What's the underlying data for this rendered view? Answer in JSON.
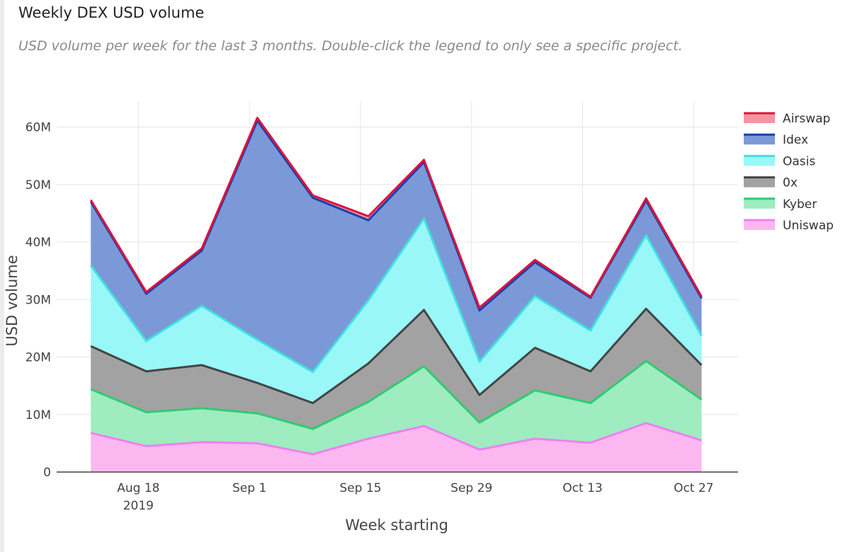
{
  "title": "Weekly DEX USD volume",
  "subtitle": "USD volume per week for the last 3 months. Double-click the legend to only see a specific project.",
  "chart_data": {
    "type": "area",
    "stacked": true,
    "x": [
      "2019-08-12",
      "2019-08-19",
      "2019-08-26",
      "2019-09-02",
      "2019-09-09",
      "2019-09-16",
      "2019-09-23",
      "2019-09-30",
      "2019-10-07",
      "2019-10-14",
      "2019-10-21",
      "2019-10-28"
    ],
    "x_ticks": [
      {
        "label": "Aug 18",
        "sublabel": "2019",
        "day": 6
      },
      {
        "label": "Sep 1",
        "sublabel": "",
        "day": 20
      },
      {
        "label": "Sep 15",
        "sublabel": "",
        "day": 34
      },
      {
        "label": "Sep 29",
        "sublabel": "",
        "day": 48
      },
      {
        "label": "Oct 13",
        "sublabel": "",
        "day": 62
      },
      {
        "label": "Oct 27",
        "sublabel": "",
        "day": 76
      }
    ],
    "x_point_days": [
      0,
      7,
      14,
      21,
      28,
      35,
      42,
      49,
      56,
      63,
      70,
      77
    ],
    "x_range_days": [
      -4.3,
      81.6
    ],
    "y_ticks": [
      {
        "value": 0,
        "label": "0"
      },
      {
        "value": 10,
        "label": "10M"
      },
      {
        "value": 20,
        "label": "20M"
      },
      {
        "value": 30,
        "label": "30M"
      },
      {
        "value": 40,
        "label": "40M"
      },
      {
        "value": 50,
        "label": "50M"
      },
      {
        "value": 60,
        "label": "60M"
      }
    ],
    "ylim": [
      0,
      64.5
    ],
    "xlabel": "Week starting",
    "ylabel": "USD volume",
    "series": [
      {
        "name": "Uniswap",
        "line": "#ee82ee",
        "fill": "#fdb7f0",
        "values": [
          6.8,
          4.5,
          5.2,
          5.0,
          3.1,
          5.8,
          8.0,
          3.9,
          5.8,
          5.1,
          8.5,
          5.5
        ]
      },
      {
        "name": "Kyber",
        "line": "#2ecc71",
        "fill": "#9eecc0",
        "values": [
          7.6,
          5.9,
          5.9,
          5.2,
          4.4,
          6.4,
          10.4,
          4.7,
          8.4,
          6.9,
          10.8,
          7.1
        ]
      },
      {
        "name": "0x",
        "line": "#444444",
        "fill": "#a2a2a2",
        "values": [
          7.5,
          7.1,
          7.5,
          5.3,
          4.5,
          6.7,
          9.8,
          4.8,
          7.4,
          5.5,
          9.1,
          6.0
        ]
      },
      {
        "name": "Oasis",
        "line": "#40e0e0",
        "fill": "#99f7f7",
        "values": [
          14.0,
          5.3,
          10.3,
          7.5,
          5.4,
          11.0,
          15.9,
          5.8,
          9.0,
          7.1,
          12.8,
          5.1
        ]
      },
      {
        "name": "Idex",
        "line": "#1a3fb0",
        "fill": "#7b99d6",
        "values": [
          11.1,
          8.2,
          9.6,
          38.1,
          30.3,
          13.9,
          9.8,
          8.9,
          5.9,
          5.7,
          6.0,
          6.5
        ]
      },
      {
        "name": "Airswap",
        "line": "#dc143c",
        "fill": "#f4969f",
        "values": [
          0.3,
          0.3,
          0.4,
          0.5,
          0.4,
          0.7,
          0.4,
          0.5,
          0.4,
          0.2,
          0.4,
          0.3
        ]
      }
    ],
    "legend_order": [
      "Airswap",
      "Idex",
      "Oasis",
      "0x",
      "Kyber",
      "Uniswap"
    ],
    "legend_position": "right"
  }
}
